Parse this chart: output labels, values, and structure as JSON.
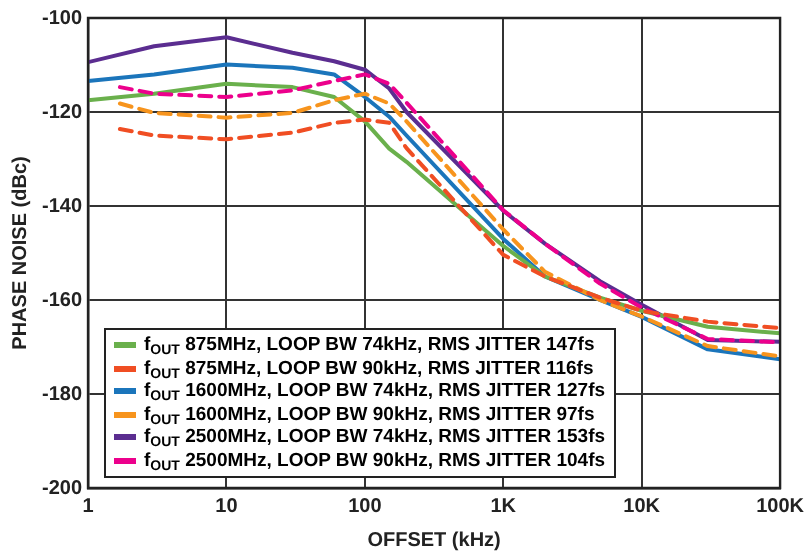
{
  "chart_data": {
    "type": "line",
    "xlabel": "OFFSET (kHz)",
    "ylabel": "PHASE NOISE (dBc)",
    "log": "x",
    "xlim": [
      1,
      100000
    ],
    "ylim": [
      -200,
      -100
    ],
    "xticks": [
      1,
      10,
      100,
      {
        "value": 1000,
        "label": "1K"
      },
      {
        "value": 10000,
        "label": "10K"
      },
      {
        "value": 100000,
        "label": "100K"
      }
    ],
    "yticks": [
      -200,
      -180,
      -160,
      -140,
      -120,
      -100
    ],
    "grid": true,
    "legend": "bottom left",
    "marker": "none",
    "series": [
      {
        "name": "f$_{OUT}$ 875MHz, LOOP BW 74kHz, RMS JITTER 147fs",
        "color": "#6ab04c",
        "line_style": "solid",
        "x": [
          1,
          3,
          10,
          30,
          60,
          100,
          150,
          200,
          1000,
          2000,
          5000,
          10000,
          30000,
          100000
        ],
        "values": [
          -117.5,
          -116.1,
          -114,
          -114.7,
          -116.8,
          -122,
          -127.8,
          -130.6,
          -148.5,
          -155,
          -159.5,
          -162.3,
          -165.7,
          -167.1
        ]
      },
      {
        "name": "f$_{OUT}$ 875MHz, LOOP BW 90kHz, RMS JITTER 116fs",
        "color": "#f04e23",
        "line_style": "dashed",
        "x": [
          1.7,
          3,
          10,
          30,
          60,
          100,
          150,
          200,
          1000,
          2000,
          5000,
          10000,
          30000,
          100000
        ],
        "values": [
          -123.6,
          -125,
          -125.8,
          -124.4,
          -122.3,
          -121.6,
          -122.3,
          -127.7,
          -150.4,
          -155,
          -159.5,
          -162.3,
          -164.6,
          -166
        ]
      },
      {
        "name": "f$_{OUT}$ 1600MHz, LOOP BW 74kHz, RMS JITTER 127fs",
        "color": "#1b75bb",
        "line_style": "solid",
        "x": [
          1,
          3,
          10,
          30,
          60,
          100,
          150,
          200,
          1000,
          2000,
          5000,
          10000,
          30000,
          100000
        ],
        "values": [
          -113.4,
          -112,
          -109.9,
          -110.6,
          -112,
          -116.8,
          -121,
          -125,
          -147,
          -155,
          -160,
          -163.6,
          -170.5,
          -172.6
        ]
      },
      {
        "name": "f$_{OUT}$ 1600MHz, LOOP BW 90kHz, RMS JITTER 97fs",
        "color": "#f7941d",
        "line_style": "dashed",
        "x": [
          1.7,
          3,
          10,
          30,
          60,
          100,
          150,
          200,
          1000,
          2000,
          5000,
          10000,
          30000,
          100000
        ],
        "values": [
          -118.2,
          -120.2,
          -121.2,
          -120.2,
          -117.5,
          -116.1,
          -118.2,
          -122,
          -145,
          -154,
          -160,
          -163.5,
          -169.8,
          -172
        ]
      },
      {
        "name": "f$_{OUT}$ 2500MHz, LOOP BW 74kHz, RMS JITTER 153fs",
        "color": "#5b2d90",
        "line_style": "solid",
        "x": [
          1,
          3,
          10,
          30,
          60,
          100,
          150,
          200,
          1000,
          2000,
          5000,
          10000,
          30000,
          100000
        ],
        "values": [
          -109.4,
          -106,
          -104.1,
          -107.4,
          -109.2,
          -111,
          -115,
          -120,
          -141,
          -148,
          -156,
          -161,
          -168.5,
          -168.9
        ]
      },
      {
        "name": "f$_{OUT}$ 2500MHz, LOOP BW 90kHz, RMS JITTER 104fs",
        "color": "#ec008c",
        "line_style": "dashed",
        "x": [
          1.7,
          3,
          10,
          30,
          60,
          100,
          150,
          200,
          1000,
          2000,
          5000,
          10000,
          30000,
          100000
        ],
        "values": [
          -114.7,
          -116.1,
          -116.8,
          -115.4,
          -113.4,
          -112,
          -114,
          -118,
          -140.9,
          -148,
          -156.5,
          -161.6,
          -168.3,
          -169
        ]
      }
    ]
  }
}
